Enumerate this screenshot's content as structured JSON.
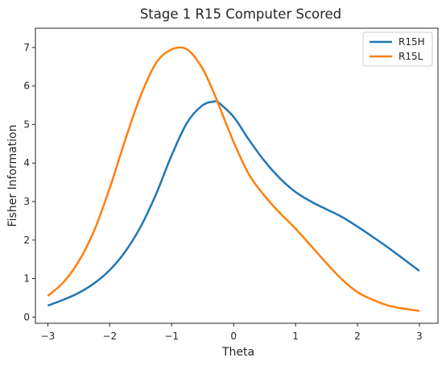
{
  "chart_data": {
    "type": "line",
    "title": "Stage 1 R15 Computer Scored",
    "xlabel": "Theta",
    "ylabel": "Fisher Information",
    "xlim": [
      -3.2,
      3.3
    ],
    "ylim": [
      -0.16,
      7.5
    ],
    "xticks": [
      -3,
      -2,
      -1,
      0,
      1,
      2,
      3
    ],
    "yticks": [
      0,
      1,
      2,
      3,
      4,
      5,
      6,
      7
    ],
    "xtick_labels": [
      "−3",
      "−2",
      "−1",
      "0",
      "1",
      "2",
      "3"
    ],
    "ytick_labels": [
      "0",
      "1",
      "2",
      "3",
      "4",
      "5",
      "6",
      "7"
    ],
    "grid": false,
    "legend_position": "top-right",
    "x": [
      -3.0,
      -2.75,
      -2.5,
      -2.25,
      -2.0,
      -1.75,
      -1.5,
      -1.25,
      -1.0,
      -0.75,
      -0.5,
      -0.3,
      -0.25,
      0.0,
      0.25,
      0.5,
      0.75,
      1.0,
      1.25,
      1.5,
      1.75,
      2.0,
      2.25,
      2.5,
      2.75,
      3.0
    ],
    "series": [
      {
        "name": "R15H",
        "color": "#1f77b4",
        "values": [
          0.3,
          0.45,
          0.63,
          0.88,
          1.22,
          1.7,
          2.35,
          3.2,
          4.2,
          5.05,
          5.5,
          5.6,
          5.58,
          5.2,
          4.6,
          4.05,
          3.6,
          3.25,
          3.0,
          2.8,
          2.6,
          2.35,
          2.08,
          1.8,
          1.5,
          1.2
        ]
      },
      {
        "name": "R15L",
        "color": "#ff7f0e",
        "values": [
          0.55,
          0.9,
          1.45,
          2.25,
          3.35,
          4.6,
          5.75,
          6.6,
          6.95,
          6.95,
          6.45,
          5.75,
          5.55,
          4.55,
          3.7,
          3.15,
          2.7,
          2.3,
          1.85,
          1.4,
          0.98,
          0.65,
          0.45,
          0.3,
          0.22,
          0.16
        ]
      }
    ]
  }
}
